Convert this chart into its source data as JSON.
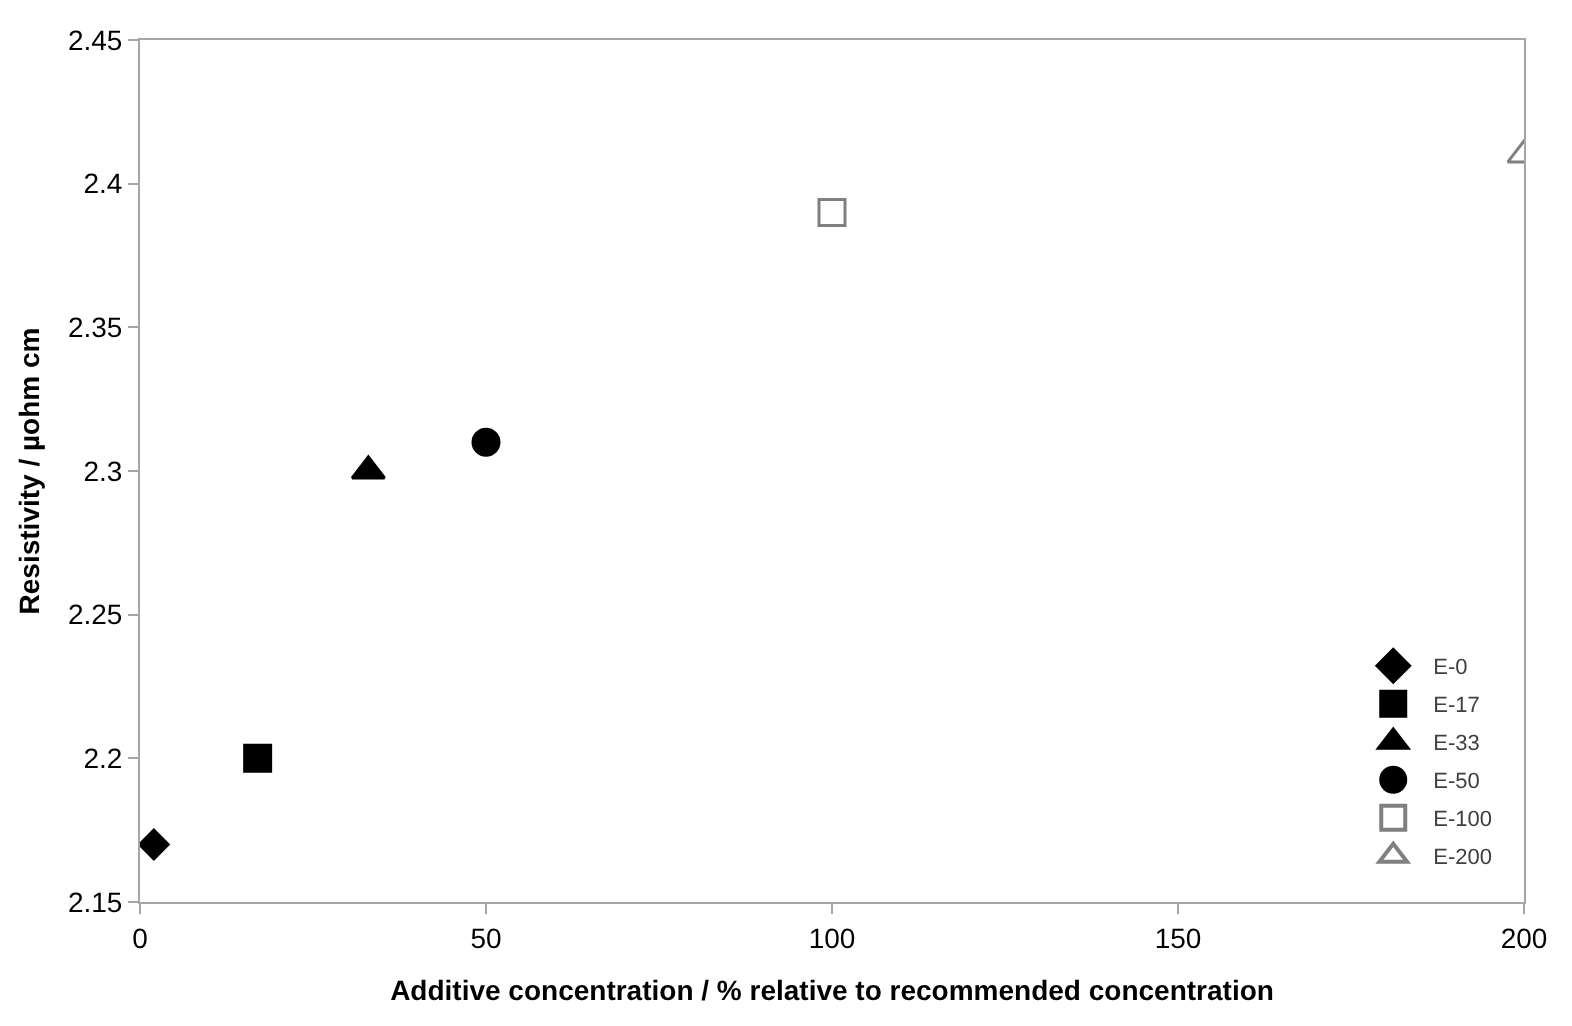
{
  "chart_data": {
    "type": "scatter",
    "xlabel": "Additive concentration / % relative to recommended concentration",
    "ylabel": "Resistivity / µohm cm",
    "series": [
      {
        "name": "E-0",
        "color": "#000000",
        "marker": "diamond",
        "x": [
          2
        ],
        "values": [
          2.17
        ]
      },
      {
        "name": "E-17",
        "color": "#000000",
        "marker": "square",
        "x": [
          17
        ],
        "values": [
          2.2
        ]
      },
      {
        "name": "E-33",
        "color": "#000000",
        "marker": "triangle",
        "x": [
          33
        ],
        "values": [
          2.3
        ]
      },
      {
        "name": "E-50",
        "color": "#000000",
        "marker": "circle",
        "x": [
          50
        ],
        "values": [
          2.31
        ]
      },
      {
        "name": "E-100",
        "color": "#808080",
        "marker": "square",
        "x": [
          100
        ],
        "values": [
          2.39
        ]
      },
      {
        "name": "E-200",
        "color": "#808080",
        "marker": "triangle",
        "x": [
          200
        ],
        "values": [
          2.41
        ]
      }
    ],
    "xlim": [
      0,
      200
    ],
    "xticks": [
      0,
      50,
      100,
      150,
      200
    ],
    "ylim": [
      2.15,
      2.45
    ],
    "yticks": [
      2.15,
      2.2,
      2.25,
      2.3,
      2.35,
      2.4,
      2.45
    ],
    "grid": false,
    "legend": "bottom right"
  }
}
